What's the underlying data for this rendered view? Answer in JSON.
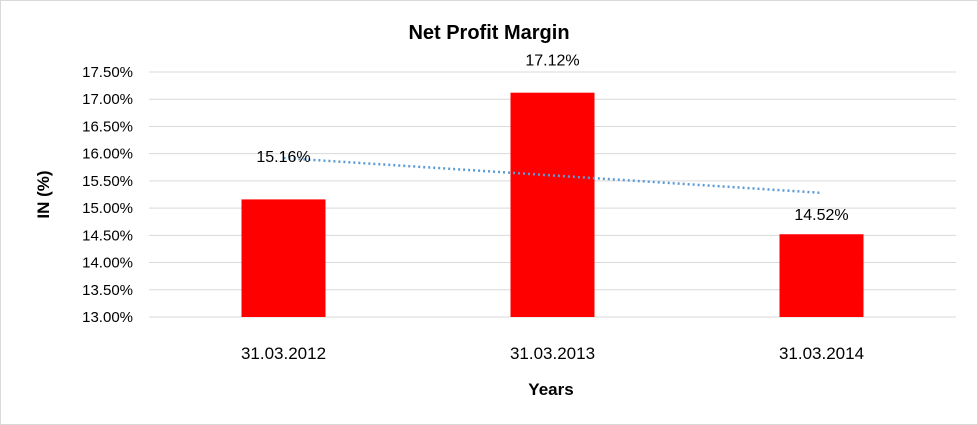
{
  "chart_data": {
    "type": "bar",
    "title": "Net Profit Margin",
    "xlabel": "Years",
    "ylabel": "IN (%)",
    "categories": [
      "31.03.2012",
      "31.03.2013",
      "31.03.2014"
    ],
    "values": [
      15.16,
      17.12,
      14.52
    ],
    "data_labels": [
      "15.16%",
      "17.12%",
      "14.52%"
    ],
    "ylim": [
      13.0,
      17.5
    ],
    "yticks": [
      13.0,
      13.5,
      14.0,
      14.5,
      15.0,
      15.5,
      16.0,
      16.5,
      17.0,
      17.5
    ],
    "ytick_labels": [
      "13.00%",
      "13.50%",
      "14.00%",
      "14.50%",
      "15.00%",
      "15.50%",
      "16.00%",
      "16.50%",
      "17.00%",
      "17.50%"
    ],
    "trendline": {
      "type": "linear",
      "style": "dotted"
    },
    "grid": true,
    "legend": "none",
    "colors": {
      "bar": "#ff0000",
      "trendline": "#5b9bd5",
      "grid": "#d9d9d9"
    }
  }
}
